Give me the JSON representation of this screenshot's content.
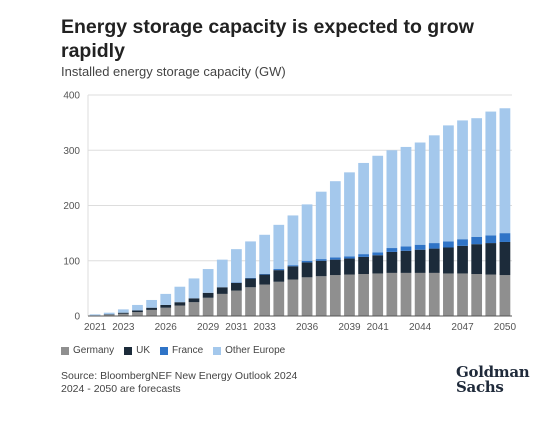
{
  "title": "Energy storage capacity is expected to grow rapidly",
  "subtitle": "Installed energy storage capacity (GW)",
  "source_line1": "Source: BloombergNEF New Energy Outlook 2024",
  "source_line2": "2024 - 2050 are forecasts",
  "logo_line1": "Goldman",
  "logo_line2": "Sachs",
  "chart_data": {
    "type": "bar",
    "stacked": true,
    "categories": [
      2021,
      2022,
      2023,
      2024,
      2025,
      2026,
      2027,
      2028,
      2029,
      2030,
      2031,
      2032,
      2033,
      2034,
      2035,
      2036,
      2037,
      2038,
      2039,
      2040,
      2041,
      2042,
      2043,
      2044,
      2045,
      2046,
      2047,
      2048,
      2049,
      2050
    ],
    "tick_labels": [
      "2021",
      "2023",
      "2026",
      "2029",
      "2031",
      "2033",
      "2036",
      "2039",
      "2041",
      "2044",
      "2047",
      "2050"
    ],
    "tick_years": [
      2021,
      2023,
      2026,
      2029,
      2031,
      2033,
      2036,
      2039,
      2041,
      2044,
      2047,
      2050
    ],
    "ylim": [
      0,
      400
    ],
    "yticks": [
      0,
      100,
      200,
      300,
      400
    ],
    "grid": true,
    "legend_position": "bottom-left",
    "series": [
      {
        "name": "Germany",
        "color": "#8f8f8f",
        "values": [
          1,
          2,
          4,
          7,
          11,
          15,
          19,
          25,
          33,
          40,
          46,
          52,
          57,
          62,
          66,
          70,
          72,
          74,
          75,
          76,
          77,
          78,
          78,
          78,
          78,
          77,
          77,
          76,
          75,
          74
        ]
      },
      {
        "name": "UK",
        "color": "#1c2b3a",
        "values": [
          0,
          1,
          2,
          3,
          4,
          5,
          6,
          7,
          9,
          12,
          14,
          16,
          18,
          21,
          24,
          27,
          28,
          28,
          29,
          31,
          33,
          38,
          40,
          42,
          44,
          47,
          50,
          54,
          57,
          60
        ]
      },
      {
        "name": "France",
        "color": "#2f74c7",
        "values": [
          0,
          0,
          0,
          0,
          0,
          0,
          0,
          0,
          0,
          0,
          1,
          1,
          1,
          2,
          2,
          3,
          3,
          4,
          4,
          5,
          5,
          7,
          8,
          9,
          10,
          11,
          12,
          13,
          14,
          16
        ]
      },
      {
        "name": "Other Europe",
        "color": "#a4c8ec",
        "values": [
          2,
          3,
          6,
          10,
          14,
          20,
          28,
          36,
          43,
          50,
          60,
          66,
          71,
          80,
          90,
          102,
          122,
          138,
          152,
          165,
          175,
          177,
          180,
          185,
          195,
          210,
          215,
          215,
          224,
          226
        ]
      }
    ]
  }
}
